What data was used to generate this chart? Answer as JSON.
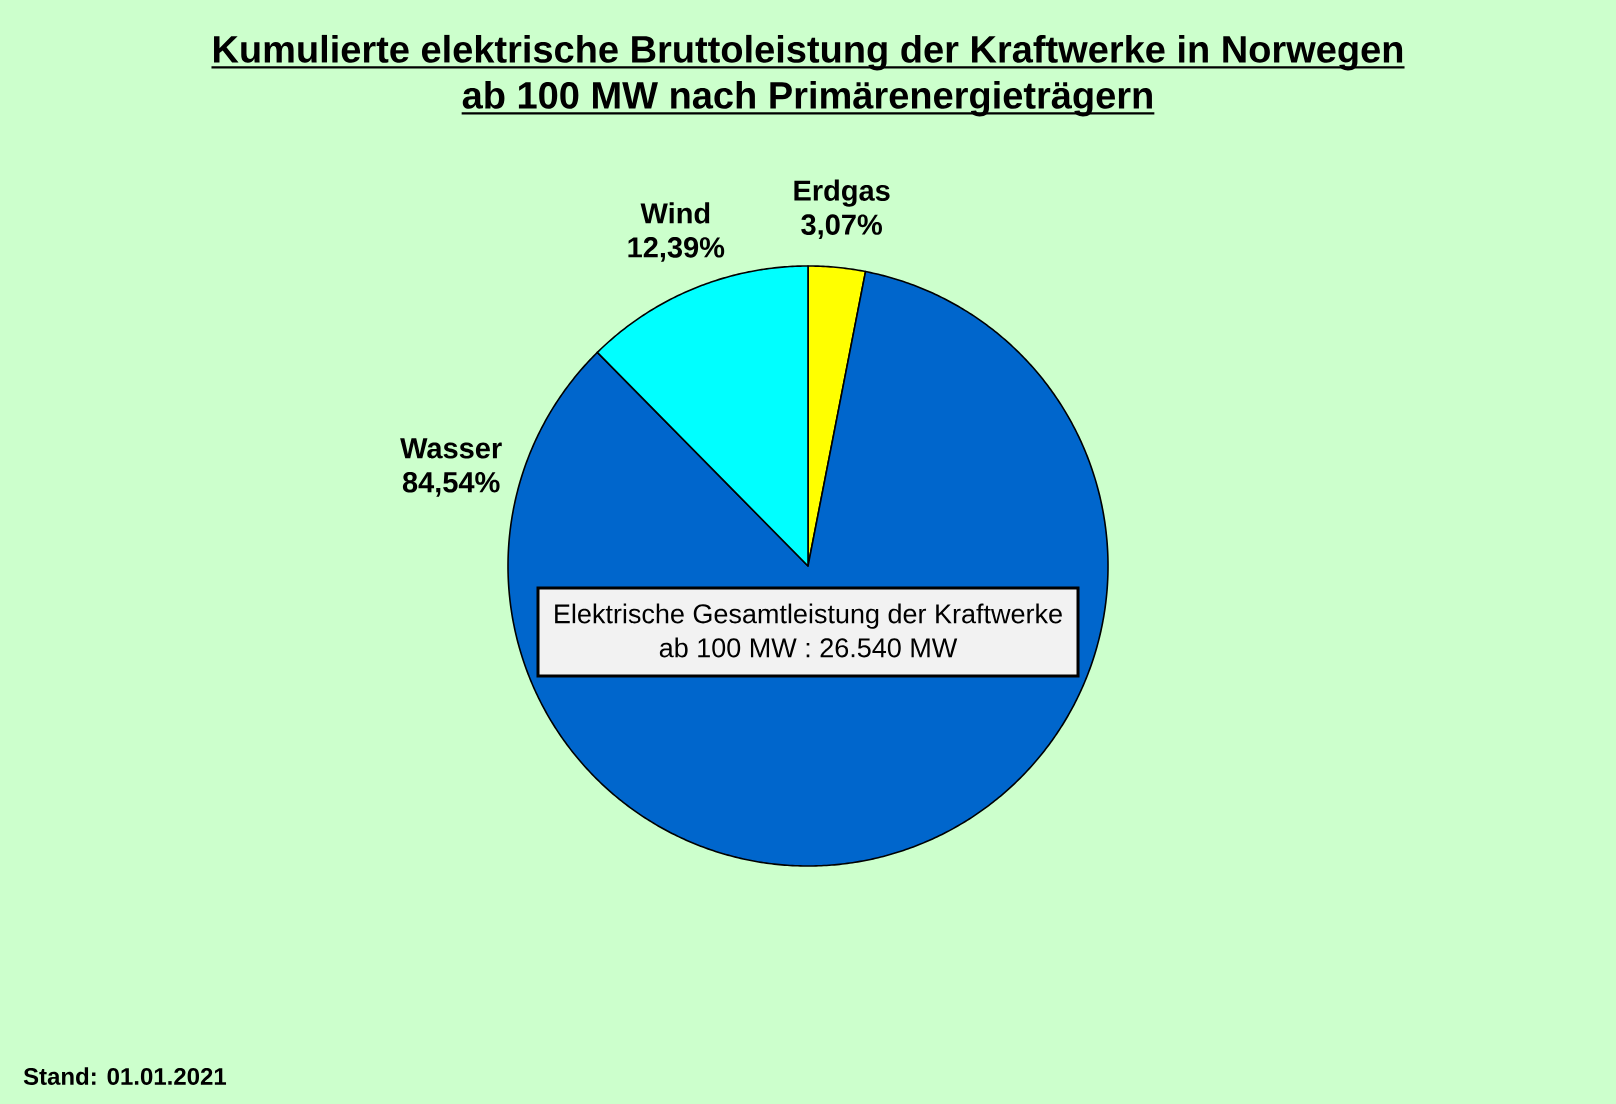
{
  "chart_data": {
    "type": "pie",
    "title": "Kumulierte elektrische Bruttoleistung der Kraftwerke in Norwegen ab 100 MW nach Primärenergieträgern",
    "categories": [
      "Erdgas",
      "Wasser",
      "Wind"
    ],
    "values": [
      3.07,
      84.54,
      12.39
    ],
    "colors": [
      "#ffff00",
      "#0066cc",
      "#00ffff"
    ],
    "value_labels": [
      "3,07%",
      "84,54%",
      "12,39%"
    ],
    "annotations": [
      "Elektrische Gesamtleistung der Kraftwerke ab 100 MW :  26.540 MW",
      "Stand: 01.01.2021"
    ]
  }
}
